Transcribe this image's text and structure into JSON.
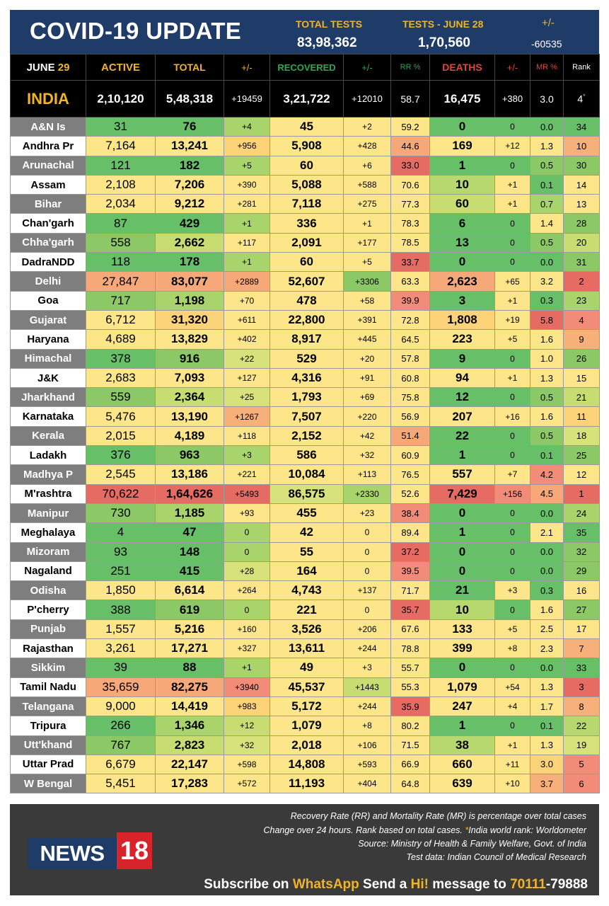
{
  "header": {
    "title": "COVID-19 UPDATE",
    "total_tests_label": "TOTAL TESTS",
    "total_tests_value": "83,98,362",
    "tests_day_label": "TESTS - JUNE 28",
    "tests_day_value": "1,70,560",
    "change_label": "+/-",
    "change_value": "-60535"
  },
  "columns": {
    "date_month": "JUNE",
    "date_day": "29",
    "active": "ACTIVE",
    "total": "TOTAL",
    "total_change": "+/-",
    "recovered": "RECOVERED",
    "recovered_change": "+/-",
    "rr": "RR %",
    "deaths": "DEATHS",
    "deaths_change": "+/-",
    "mr": "MR %",
    "rank": "Rank"
  },
  "colors": {
    "banner": "#1f3b68",
    "header_yellow": "#f0b429",
    "header_green": "#2ea84a",
    "header_red": "#e2463b",
    "header_white": "#ffffff",
    "india_label": "#f0b429",
    "footer": "#3a3a3a",
    "logo_red": "#d8232a"
  },
  "india": {
    "name": "INDIA",
    "active": "2,10,120",
    "total": "5,48,318",
    "total_change": "+19459",
    "recovered": "3,21,722",
    "recovered_change": "+12010",
    "rr": "58.7",
    "deaths": "16,475",
    "deaths_change": "+380",
    "mr": "3.0",
    "rank": "4"
  },
  "rows": [
    {
      "name": "A&N Is",
      "active": "31",
      "total": "76",
      "total_change": "+4",
      "recovered": "45",
      "recovered_change": "+2",
      "rr": "59.2",
      "deaths": "0",
      "deaths_change": "0",
      "mr": "0.0",
      "rank": "34",
      "c": [
        "#67c068",
        "#67c068",
        "#a9d36b",
        "#fde68a",
        "#fde68a",
        "#fde68a",
        "#67c068",
        "#67c068",
        "#67c068",
        "#67c068"
      ]
    },
    {
      "name": "Andhra Pr",
      "active": "7,164",
      "total": "13,241",
      "total_change": "+956",
      "recovered": "5,908",
      "recovered_change": "+428",
      "rr": "44.6",
      "deaths": "169",
      "deaths_change": "+12",
      "mr": "1.3",
      "rank": "10",
      "c": [
        "#fde68a",
        "#fde68a",
        "#fdd37a",
        "#fde68a",
        "#fde68a",
        "#f6a878",
        "#fde68a",
        "#fde68a",
        "#fde68a",
        "#f8b07a"
      ]
    },
    {
      "name": "Arunachal",
      "active": "121",
      "total": "182",
      "total_change": "+5",
      "recovered": "60",
      "recovered_change": "+6",
      "rr": "33.0",
      "deaths": "1",
      "deaths_change": "0",
      "mr": "0.5",
      "rank": "30",
      "c": [
        "#67c068",
        "#67c068",
        "#a9d36b",
        "#fde68a",
        "#fde68a",
        "#e56b63",
        "#67c068",
        "#67c068",
        "#8cc966",
        "#8cc966"
      ]
    },
    {
      "name": "Assam",
      "active": "2,108",
      "total": "7,206",
      "total_change": "+390",
      "recovered": "5,088",
      "recovered_change": "+588",
      "rr": "70.6",
      "deaths": "10",
      "deaths_change": "+1",
      "mr": "0.1",
      "rank": "14",
      "c": [
        "#fde68a",
        "#fde68a",
        "#fde68a",
        "#fde68a",
        "#fde68a",
        "#fde68a",
        "#b6d86f",
        "#fde68a",
        "#67c068",
        "#fde68a"
      ]
    },
    {
      "name": "Bihar",
      "active": "2,034",
      "total": "9,212",
      "total_change": "+281",
      "recovered": "7,118",
      "recovered_change": "+275",
      "rr": "77.3",
      "deaths": "60",
      "deaths_change": "+1",
      "mr": "0.7",
      "rank": "13",
      "c": [
        "#fde68a",
        "#fde68a",
        "#fde68a",
        "#fde68a",
        "#fde68a",
        "#fde68a",
        "#c7dd72",
        "#fde68a",
        "#a9d36b",
        "#fde68a"
      ]
    },
    {
      "name": "Chan'garh",
      "active": "87",
      "total": "429",
      "total_change": "+1",
      "recovered": "336",
      "recovered_change": "+1",
      "rr": "78.3",
      "deaths": "6",
      "deaths_change": "0",
      "mr": "1.4",
      "rank": "28",
      "c": [
        "#67c068",
        "#67c068",
        "#a9d36b",
        "#fde68a",
        "#fde68a",
        "#fde68a",
        "#67c068",
        "#67c068",
        "#fde68a",
        "#8cc966"
      ]
    },
    {
      "name": "Chha'garh",
      "active": "558",
      "total": "2,662",
      "total_change": "+117",
      "recovered": "2,091",
      "recovered_change": "+177",
      "rr": "78.5",
      "deaths": "13",
      "deaths_change": "0",
      "mr": "0.5",
      "rank": "20",
      "c": [
        "#8cc966",
        "#c7dd72",
        "#fde68a",
        "#fde68a",
        "#fde68a",
        "#fde68a",
        "#67c068",
        "#67c068",
        "#8cc966",
        "#c7dd72"
      ]
    },
    {
      "name": "DadraNDD",
      "active": "118",
      "total": "178",
      "total_change": "+1",
      "recovered": "60",
      "recovered_change": "+5",
      "rr": "33.7",
      "deaths": "0",
      "deaths_change": "0",
      "mr": "0.0",
      "rank": "31",
      "c": [
        "#67c068",
        "#67c068",
        "#a9d36b",
        "#fde68a",
        "#fde68a",
        "#e56b63",
        "#67c068",
        "#67c068",
        "#67c068",
        "#8cc966"
      ]
    },
    {
      "name": "Delhi",
      "active": "27,847",
      "total": "83,077",
      "total_change": "+2889",
      "recovered": "52,607",
      "recovered_change": "+3306",
      "rr": "63.3",
      "deaths": "2,623",
      "deaths_change": "+65",
      "mr": "3.2",
      "rank": "2",
      "c": [
        "#f6a878",
        "#f6a878",
        "#f6a878",
        "#fde68a",
        "#8cc966",
        "#fde68a",
        "#f6a878",
        "#fde68a",
        "#fde68a",
        "#e56b63"
      ]
    },
    {
      "name": "Goa",
      "active": "717",
      "total": "1,198",
      "total_change": "+70",
      "recovered": "478",
      "recovered_change": "+58",
      "rr": "39.9",
      "deaths": "3",
      "deaths_change": "+1",
      "mr": "0.3",
      "rank": "23",
      "c": [
        "#8cc966",
        "#a9d36b",
        "#fde68a",
        "#fde68a",
        "#fde68a",
        "#f28c78",
        "#67c068",
        "#fde68a",
        "#67c068",
        "#a9d36b"
      ]
    },
    {
      "name": "Gujarat",
      "active": "6,712",
      "total": "31,320",
      "total_change": "+611",
      "recovered": "22,800",
      "recovered_change": "+391",
      "rr": "72.8",
      "deaths": "1,808",
      "deaths_change": "+19",
      "mr": "5.8",
      "rank": "4",
      "c": [
        "#fde68a",
        "#fdd37a",
        "#fde68a",
        "#fde68a",
        "#fde68a",
        "#fde68a",
        "#fdd37a",
        "#fde68a",
        "#e56b63",
        "#f28c78"
      ]
    },
    {
      "name": "Haryana",
      "active": "4,689",
      "total": "13,829",
      "total_change": "+402",
      "recovered": "8,917",
      "recovered_change": "+445",
      "rr": "64.5",
      "deaths": "223",
      "deaths_change": "+5",
      "mr": "1.6",
      "rank": "9",
      "c": [
        "#fde68a",
        "#fde68a",
        "#fde68a",
        "#fde68a",
        "#fde68a",
        "#fde68a",
        "#fde68a",
        "#fde68a",
        "#fde68a",
        "#f8b07a"
      ]
    },
    {
      "name": "Himachal",
      "active": "378",
      "total": "916",
      "total_change": "+22",
      "recovered": "529",
      "recovered_change": "+20",
      "rr": "57.8",
      "deaths": "9",
      "deaths_change": "0",
      "mr": "1.0",
      "rank": "26",
      "c": [
        "#67c068",
        "#8cc966",
        "#d8e27a",
        "#fde68a",
        "#fde68a",
        "#fde68a",
        "#67c068",
        "#67c068",
        "#fde68a",
        "#8cc966"
      ]
    },
    {
      "name": "J&K",
      "active": "2,683",
      "total": "7,093",
      "total_change": "+127",
      "recovered": "4,316",
      "recovered_change": "+91",
      "rr": "60.8",
      "deaths": "94",
      "deaths_change": "+1",
      "mr": "1.3",
      "rank": "15",
      "c": [
        "#fde68a",
        "#fde68a",
        "#fde68a",
        "#fde68a",
        "#fde68a",
        "#fde68a",
        "#fde68a",
        "#fde68a",
        "#fde68a",
        "#fde68a"
      ]
    },
    {
      "name": "Jharkhand",
      "active": "559",
      "total": "2,364",
      "total_change": "+25",
      "recovered": "1,793",
      "recovered_change": "+69",
      "rr": "75.8",
      "deaths": "12",
      "deaths_change": "0",
      "mr": "0.5",
      "rank": "21",
      "c": [
        "#8cc966",
        "#c7dd72",
        "#d8e27a",
        "#fde68a",
        "#fde68a",
        "#fde68a",
        "#67c068",
        "#67c068",
        "#8cc966",
        "#c7dd72"
      ]
    },
    {
      "name": "Karnataka",
      "active": "5,476",
      "total": "13,190",
      "total_change": "+1267",
      "recovered": "7,507",
      "recovered_change": "+220",
      "rr": "56.9",
      "deaths": "207",
      "deaths_change": "+16",
      "mr": "1.6",
      "rank": "11",
      "c": [
        "#fde68a",
        "#fde68a",
        "#f8b07a",
        "#fde68a",
        "#fde68a",
        "#fde68a",
        "#fde68a",
        "#fde68a",
        "#fde68a",
        "#fdd37a"
      ]
    },
    {
      "name": "Kerala",
      "active": "2,015",
      "total": "4,189",
      "total_change": "+118",
      "recovered": "2,152",
      "recovered_change": "+42",
      "rr": "51.4",
      "deaths": "22",
      "deaths_change": "0",
      "mr": "0.5",
      "rank": "18",
      "c": [
        "#fde68a",
        "#fde68a",
        "#fde68a",
        "#fde68a",
        "#fde68a",
        "#f6a878",
        "#67c068",
        "#67c068",
        "#8cc966",
        "#d8e27a"
      ]
    },
    {
      "name": "Ladakh",
      "active": "376",
      "total": "963",
      "total_change": "+3",
      "recovered": "586",
      "recovered_change": "+32",
      "rr": "60.9",
      "deaths": "1",
      "deaths_change": "0",
      "mr": "0.1",
      "rank": "25",
      "c": [
        "#67c068",
        "#8cc966",
        "#a9d36b",
        "#fde68a",
        "#fde68a",
        "#fde68a",
        "#67c068",
        "#67c068",
        "#67c068",
        "#8cc966"
      ]
    },
    {
      "name": "Madhya P",
      "active": "2,545",
      "total": "13,186",
      "total_change": "+221",
      "recovered": "10,084",
      "recovered_change": "+113",
      "rr": "76.5",
      "deaths": "557",
      "deaths_change": "+7",
      "mr": "4.2",
      "rank": "12",
      "c": [
        "#fde68a",
        "#fde68a",
        "#fde68a",
        "#fde68a",
        "#fde68a",
        "#fde68a",
        "#fde68a",
        "#fde68a",
        "#f28c78",
        "#fde68a"
      ]
    },
    {
      "name": "M'rashtra",
      "active": "70,622",
      "total": "1,64,626",
      "total_change": "+5493",
      "recovered": "86,575",
      "recovered_change": "+2330",
      "rr": "52.6",
      "deaths": "7,429",
      "deaths_change": "+156",
      "mr": "4.5",
      "rank": "1",
      "c": [
        "#e56b63",
        "#e56b63",
        "#e56b63",
        "#d8e27a",
        "#a9d36b",
        "#fde68a",
        "#e56b63",
        "#f28c78",
        "#f6a878",
        "#e56b63"
      ]
    },
    {
      "name": "Manipur",
      "active": "730",
      "total": "1,185",
      "total_change": "+93",
      "recovered": "455",
      "recovered_change": "+23",
      "rr": "38.4",
      "deaths": "0",
      "deaths_change": "0",
      "mr": "0.0",
      "rank": "24",
      "c": [
        "#8cc966",
        "#a9d36b",
        "#fde68a",
        "#fde68a",
        "#fde68a",
        "#f28c78",
        "#67c068",
        "#67c068",
        "#67c068",
        "#a9d36b"
      ]
    },
    {
      "name": "Meghalaya",
      "active": "4",
      "total": "47",
      "total_change": "0",
      "recovered": "42",
      "recovered_change": "0",
      "rr": "89.4",
      "deaths": "1",
      "deaths_change": "0",
      "mr": "2.1",
      "rank": "35",
      "c": [
        "#67c068",
        "#67c068",
        "#a9d36b",
        "#fde68a",
        "#fde68a",
        "#fde68a",
        "#67c068",
        "#67c068",
        "#fde68a",
        "#67c068"
      ]
    },
    {
      "name": "Mizoram",
      "active": "93",
      "total": "148",
      "total_change": "0",
      "recovered": "55",
      "recovered_change": "0",
      "rr": "37.2",
      "deaths": "0",
      "deaths_change": "0",
      "mr": "0.0",
      "rank": "32",
      "c": [
        "#67c068",
        "#67c068",
        "#a9d36b",
        "#fde68a",
        "#fde68a",
        "#e56b63",
        "#67c068",
        "#67c068",
        "#67c068",
        "#8cc966"
      ]
    },
    {
      "name": "Nagaland",
      "active": "251",
      "total": "415",
      "total_change": "+28",
      "recovered": "164",
      "recovered_change": "0",
      "rr": "39.5",
      "deaths": "0",
      "deaths_change": "0",
      "mr": "0.0",
      "rank": "29",
      "c": [
        "#67c068",
        "#67c068",
        "#d8e27a",
        "#fde68a",
        "#fde68a",
        "#f28c78",
        "#67c068",
        "#67c068",
        "#67c068",
        "#8cc966"
      ]
    },
    {
      "name": "Odisha",
      "active": "1,850",
      "total": "6,614",
      "total_change": "+264",
      "recovered": "4,743",
      "recovered_change": "+137",
      "rr": "71.7",
      "deaths": "21",
      "deaths_change": "+3",
      "mr": "0.3",
      "rank": "16",
      "c": [
        "#fde68a",
        "#fde68a",
        "#fde68a",
        "#fde68a",
        "#fde68a",
        "#fde68a",
        "#67c068",
        "#fde68a",
        "#67c068",
        "#fde68a"
      ]
    },
    {
      "name": "P'cherry",
      "active": "388",
      "total": "619",
      "total_change": "0",
      "recovered": "221",
      "recovered_change": "0",
      "rr": "35.7",
      "deaths": "10",
      "deaths_change": "0",
      "mr": "1.6",
      "rank": "27",
      "c": [
        "#67c068",
        "#8cc966",
        "#a9d36b",
        "#fde68a",
        "#fde68a",
        "#e56b63",
        "#b6d86f",
        "#67c068",
        "#fde68a",
        "#8cc966"
      ]
    },
    {
      "name": "Punjab",
      "active": "1,557",
      "total": "5,216",
      "total_change": "+160",
      "recovered": "3,526",
      "recovered_change": "+206",
      "rr": "67.6",
      "deaths": "133",
      "deaths_change": "+5",
      "mr": "2.5",
      "rank": "17",
      "c": [
        "#fde68a",
        "#fde68a",
        "#fde68a",
        "#fde68a",
        "#fde68a",
        "#fde68a",
        "#fde68a",
        "#fde68a",
        "#fde68a",
        "#fde68a"
      ]
    },
    {
      "name": "Rajasthan",
      "active": "3,261",
      "total": "17,271",
      "total_change": "+327",
      "recovered": "13,611",
      "recovered_change": "+244",
      "rr": "78.8",
      "deaths": "399",
      "deaths_change": "+8",
      "mr": "2.3",
      "rank": "7",
      "c": [
        "#fde68a",
        "#fde68a",
        "#fde68a",
        "#fde68a",
        "#fde68a",
        "#fde68a",
        "#fde68a",
        "#fde68a",
        "#fde68a",
        "#f8b07a"
      ]
    },
    {
      "name": "Sikkim",
      "active": "39",
      "total": "88",
      "total_change": "+1",
      "recovered": "49",
      "recovered_change": "+3",
      "rr": "55.7",
      "deaths": "0",
      "deaths_change": "0",
      "mr": "0.0",
      "rank": "33",
      "c": [
        "#67c068",
        "#67c068",
        "#a9d36b",
        "#fde68a",
        "#fde68a",
        "#fde68a",
        "#67c068",
        "#67c068",
        "#67c068",
        "#67c068"
      ]
    },
    {
      "name": "Tamil Nadu",
      "active": "35,659",
      "total": "82,275",
      "total_change": "+3940",
      "recovered": "45,537",
      "recovered_change": "+1443",
      "rr": "55.3",
      "deaths": "1,079",
      "deaths_change": "+54",
      "mr": "1.3",
      "rank": "3",
      "c": [
        "#f6a878",
        "#f6a878",
        "#f28c78",
        "#fde68a",
        "#c7dd72",
        "#fde68a",
        "#fde68a",
        "#fde68a",
        "#fde68a",
        "#e56b63"
      ]
    },
    {
      "name": "Telangana",
      "active": "9,000",
      "total": "14,419",
      "total_change": "+983",
      "recovered": "5,172",
      "recovered_change": "+244",
      "rr": "35.9",
      "deaths": "247",
      "deaths_change": "+4",
      "mr": "1.7",
      "rank": "8",
      "c": [
        "#fde68a",
        "#fde68a",
        "#fdd37a",
        "#fde68a",
        "#fde68a",
        "#e56b63",
        "#fde68a",
        "#fde68a",
        "#fde68a",
        "#f8b07a"
      ]
    },
    {
      "name": "Tripura",
      "active": "266",
      "total": "1,346",
      "total_change": "+12",
      "recovered": "1,079",
      "recovered_change": "+8",
      "rr": "80.2",
      "deaths": "1",
      "deaths_change": "0",
      "mr": "0.1",
      "rank": "22",
      "c": [
        "#67c068",
        "#a9d36b",
        "#c7dd72",
        "#fde68a",
        "#fde68a",
        "#fde68a",
        "#67c068",
        "#67c068",
        "#67c068",
        "#b6d86f"
      ]
    },
    {
      "name": "Utt'khand",
      "active": "767",
      "total": "2,823",
      "total_change": "+32",
      "recovered": "2,018",
      "recovered_change": "+106",
      "rr": "71.5",
      "deaths": "38",
      "deaths_change": "+1",
      "mr": "1.3",
      "rank": "19",
      "c": [
        "#8cc966",
        "#c7dd72",
        "#d8e27a",
        "#fde68a",
        "#fde68a",
        "#fde68a",
        "#b6d86f",
        "#fde68a",
        "#fde68a",
        "#d8e27a"
      ]
    },
    {
      "name": "Uttar Prad",
      "active": "6,679",
      "total": "22,147",
      "total_change": "+598",
      "recovered": "14,808",
      "recovered_change": "+593",
      "rr": "66.9",
      "deaths": "660",
      "deaths_change": "+11",
      "mr": "3.0",
      "rank": "5",
      "c": [
        "#fde68a",
        "#fde68a",
        "#fde68a",
        "#fde68a",
        "#fde68a",
        "#fde68a",
        "#fde68a",
        "#fde68a",
        "#fdd37a",
        "#f28c78"
      ]
    },
    {
      "name": "W Bengal",
      "active": "5,451",
      "total": "17,283",
      "total_change": "+572",
      "recovered": "11,193",
      "recovered_change": "+404",
      "rr": "64.8",
      "deaths": "639",
      "deaths_change": "+10",
      "mr": "3.7",
      "rank": "6",
      "c": [
        "#fde68a",
        "#fde68a",
        "#fde68a",
        "#fde68a",
        "#fde68a",
        "#fde68a",
        "#fde68a",
        "#fde68a",
        "#f8b07a",
        "#f28c78"
      ]
    }
  ],
  "footer": {
    "note1": "Recovery Rate (RR) and Mortality Rate (MR) is percentage over total cases",
    "note2_a": "Change over 24 hours. Rank based on total cases.",
    "note2_star": "*",
    "note2_b": "India world rank: Worldometer",
    "note3": "Source: Ministry of Health & Family Welfare, Govt. of India",
    "note4": "Test data: Indian Council of Medical Research",
    "logo_news": "NEWS",
    "logo_18": "18",
    "subscribe_a": "Subscribe on",
    "subscribe_whatsapp": "WhatsApp",
    "subscribe_b": "Send a",
    "subscribe_hi": "Hi!",
    "subscribe_c": "message to",
    "phone_a": "70111",
    "phone_b": "-79888"
  }
}
